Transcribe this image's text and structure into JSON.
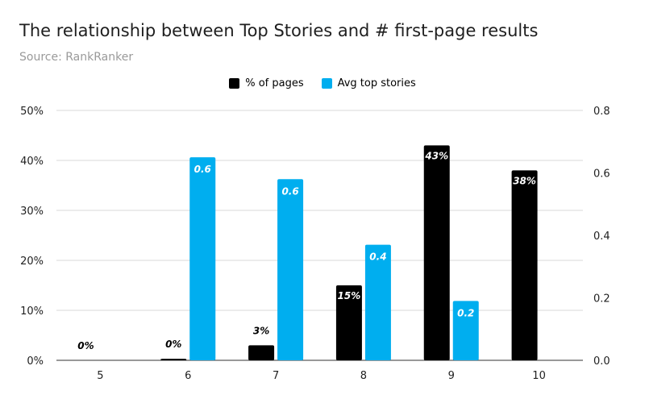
{
  "title": "The relationship between Top Stories and # first-page results",
  "subtitle": "Source: RankRanker",
  "colors": {
    "pages": "#000000",
    "stories": "#00aeef",
    "grid": "#d9d9d9",
    "axis": "#333333",
    "text": "#1f1f1f"
  },
  "chart_data": {
    "type": "bar",
    "categories": [
      "5",
      "6",
      "7",
      "8",
      "9",
      "10"
    ],
    "series": [
      {
        "name": "% of pages",
        "axis": "left",
        "values": [
          0,
          0.3,
          3,
          15,
          43,
          38
        ],
        "labels": [
          "0%",
          "0%",
          "3%",
          "15%",
          "43%",
          "38%"
        ]
      },
      {
        "name": "Avg top stories",
        "axis": "right",
        "values": [
          0,
          0.65,
          0.58,
          0.37,
          0.19,
          0
        ],
        "labels": [
          "",
          "0.6",
          "0.6",
          "0.4",
          "0.2",
          ""
        ]
      }
    ],
    "y_left": {
      "ylim": [
        0,
        50
      ],
      "ticks": [
        "0%",
        "10%",
        "20%",
        "30%",
        "40%",
        "50%"
      ]
    },
    "y_right": {
      "ylim": [
        0,
        0.8
      ],
      "ticks": [
        "0.0",
        "0.2",
        "0.4",
        "0.6",
        "0.8"
      ]
    },
    "grid": true,
    "legend": "top-center"
  }
}
